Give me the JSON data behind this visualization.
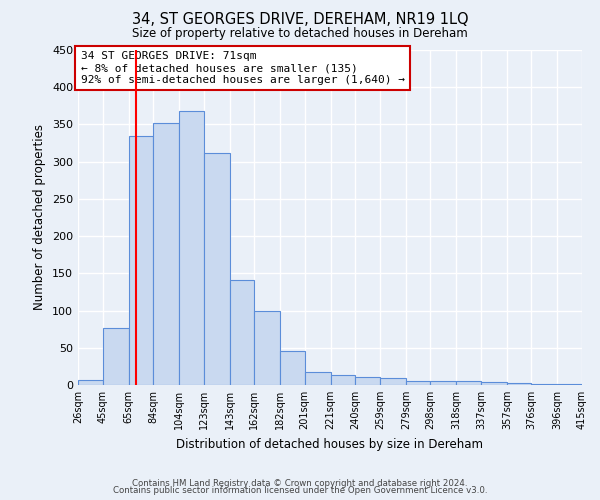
{
  "title": "34, ST GEORGES DRIVE, DEREHAM, NR19 1LQ",
  "subtitle": "Size of property relative to detached houses in Dereham",
  "xlabel": "Distribution of detached houses by size in Dereham",
  "ylabel": "Number of detached properties",
  "footer_line1": "Contains HM Land Registry data © Crown copyright and database right 2024.",
  "footer_line2": "Contains public sector information licensed under the Open Government Licence v3.0.",
  "annotation_line1": "34 ST GEORGES DRIVE: 71sqm",
  "annotation_line2": "← 8% of detached houses are smaller (135)",
  "annotation_line3": "92% of semi-detached houses are larger (1,640) →",
  "bin_edges": [
    26,
    45,
    65,
    84,
    104,
    123,
    143,
    162,
    182,
    201,
    221,
    240,
    259,
    279,
    298,
    318,
    337,
    357,
    376,
    396,
    415
  ],
  "bar_heights": [
    7,
    76,
    335,
    352,
    368,
    311,
    141,
    100,
    46,
    17,
    14,
    11,
    10,
    5,
    6,
    5,
    4,
    3,
    1,
    2
  ],
  "bar_color": "#c9d9f0",
  "bar_edge_color": "#5b8dd9",
  "red_line_x": 71,
  "annotation_box_color": "#ffffff",
  "annotation_box_edge_color": "#cc0000",
  "ylim": [
    0,
    450
  ],
  "xlim": [
    26,
    415
  ],
  "tick_labels": [
    "26sqm",
    "45sqm",
    "65sqm",
    "84sqm",
    "104sqm",
    "123sqm",
    "143sqm",
    "162sqm",
    "182sqm",
    "201sqm",
    "221sqm",
    "240sqm",
    "259sqm",
    "279sqm",
    "298sqm",
    "318sqm",
    "337sqm",
    "357sqm",
    "376sqm",
    "396sqm",
    "415sqm"
  ],
  "background_color": "#eaf0f8",
  "yticks": [
    0,
    50,
    100,
    150,
    200,
    250,
    300,
    350,
    400,
    450
  ]
}
